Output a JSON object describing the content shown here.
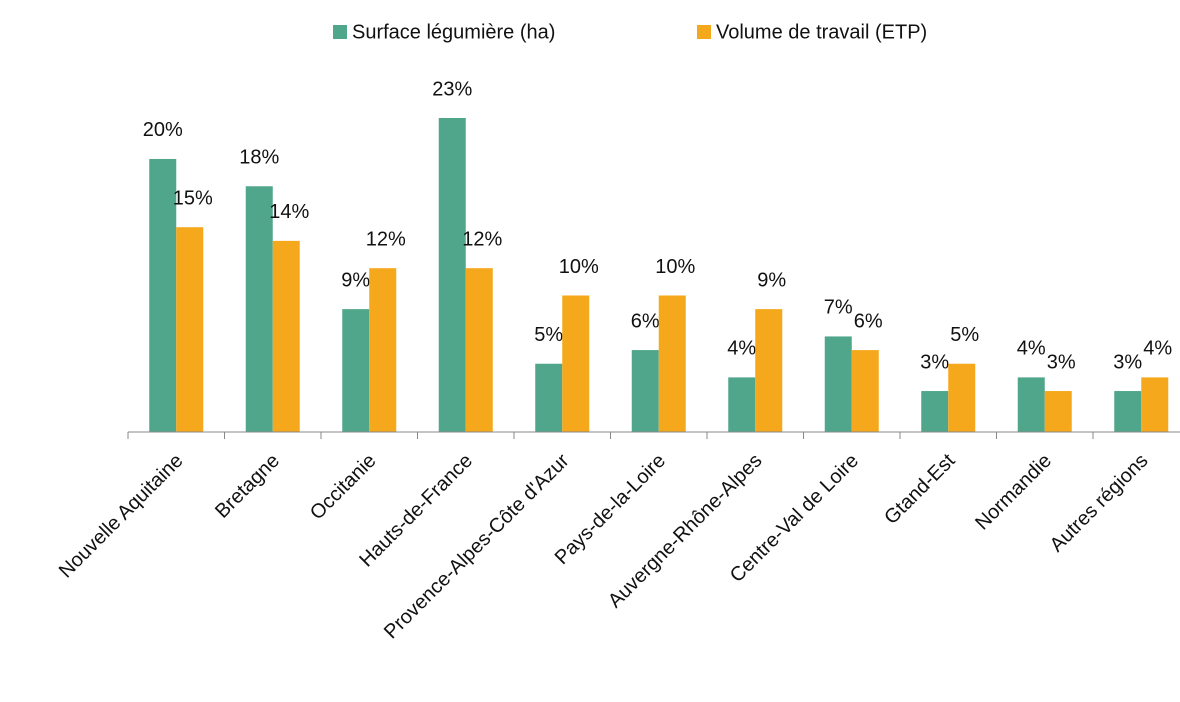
{
  "chart_data": {
    "type": "bar",
    "categories": [
      "Nouvelle Aquitaine",
      "Bretagne",
      "Occitanie",
      "Hauts-de-France",
      "Provence-Alpes-Côte d'Azur",
      "Pays-de-la-Loire",
      "Auvergne-Rhône-Alpes",
      "Centre-Val de Loire",
      "Gtand-Est",
      "Normandie",
      "Autres régions"
    ],
    "series": [
      {
        "name": "Surface légumière (ha)",
        "color": "#4fa68a",
        "values": [
          20,
          18,
          9,
          23,
          5,
          6,
          4,
          7,
          3,
          4,
          3
        ],
        "value_labels": [
          "20%",
          "18%",
          "9%",
          "23%",
          "5%",
          "6%",
          "4%",
          "7%",
          "3%",
          "4%",
          "3%"
        ]
      },
      {
        "name": "Volume de travail (ETP)",
        "color": "#f5a81c",
        "values": [
          15,
          14,
          12,
          12,
          10,
          10,
          9,
          6,
          5,
          3,
          4
        ],
        "value_labels": [
          "15%",
          "14%",
          "12%",
          "12%",
          "10%",
          "10%",
          "9%",
          "6%",
          "5%",
          "3%",
          "4%"
        ]
      }
    ],
    "legend": "top"
  }
}
